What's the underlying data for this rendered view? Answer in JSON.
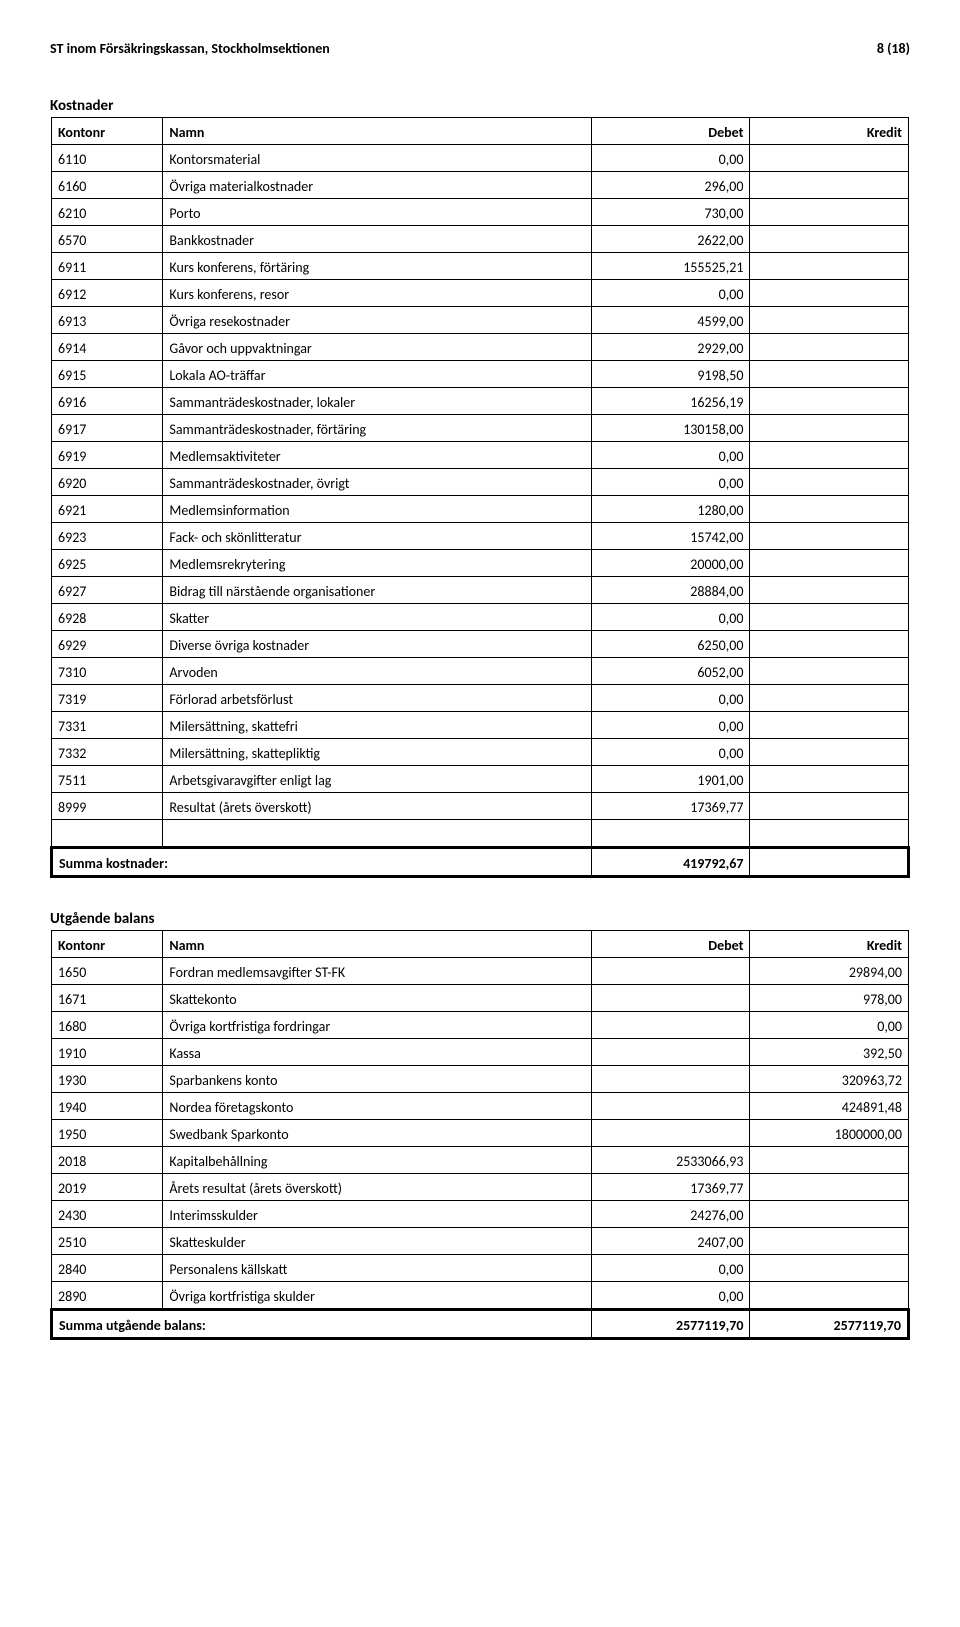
{
  "header": {
    "org": "ST inom Försäkringskassan, Stockholmsektionen",
    "page": "8 (18)"
  },
  "kostnader": {
    "title": "Kostnader",
    "columns": [
      "Kontonr",
      "Namn",
      "Debet",
      "Kredit"
    ],
    "rows": [
      [
        "6110",
        "Kontorsmaterial",
        "0,00",
        ""
      ],
      [
        "6160",
        "Övriga materialkostnader",
        "296,00",
        ""
      ],
      [
        "6210",
        "Porto",
        "730,00",
        ""
      ],
      [
        "6570",
        "Bankkostnader",
        "2622,00",
        ""
      ],
      [
        "6911",
        "Kurs konferens, förtäring",
        "155525,21",
        ""
      ],
      [
        "6912",
        "Kurs konferens, resor",
        "0,00",
        ""
      ],
      [
        "6913",
        "Övriga resekostnader",
        "4599,00",
        ""
      ],
      [
        "6914",
        "Gåvor och uppvaktningar",
        "2929,00",
        ""
      ],
      [
        "6915",
        "Lokala AO-träffar",
        "9198,50",
        ""
      ],
      [
        "6916",
        "Sammanträdeskostnader, lokaler",
        "16256,19",
        ""
      ],
      [
        "6917",
        "Sammanträdeskostnader, förtäring",
        "130158,00",
        ""
      ],
      [
        "6919",
        "Medlemsaktiviteter",
        "0,00",
        ""
      ],
      [
        "6920",
        "Sammanträdeskostnader, övrigt",
        "0,00",
        ""
      ],
      [
        "6921",
        "Medlemsinformation",
        "1280,00",
        ""
      ],
      [
        "6923",
        "Fack- och skönlitteratur",
        "15742,00",
        ""
      ],
      [
        "6925",
        "Medlemsrekrytering",
        "20000,00",
        ""
      ],
      [
        "6927",
        "Bidrag till närstående organisationer",
        "28884,00",
        ""
      ],
      [
        "6928",
        "Skatter",
        "0,00",
        ""
      ],
      [
        "6929",
        "Diverse övriga kostnader",
        "6250,00",
        ""
      ],
      [
        "7310",
        "Arvoden",
        "6052,00",
        ""
      ],
      [
        "7319",
        "Förlorad arbetsförlust",
        "0,00",
        ""
      ],
      [
        "7331",
        "Milersättning, skattefri",
        "0,00",
        ""
      ],
      [
        "7332",
        "Milersättning, skattepliktig",
        "0,00",
        ""
      ],
      [
        "7511",
        "Arbetsgivaravgifter enligt lag",
        "1901,00",
        ""
      ],
      [
        "8999",
        "Resultat (årets överskott)",
        "17369,77",
        ""
      ]
    ],
    "sum_label": "Summa kostnader:",
    "sum_debet": "419792,67"
  },
  "utgaende": {
    "title": "Utgående balans",
    "columns": [
      "Kontonr",
      "Namn",
      "Debet",
      "Kredit"
    ],
    "rows": [
      [
        "1650",
        "Fordran medlemsavgifter ST-FK",
        "",
        "29894,00"
      ],
      [
        "1671",
        "Skattekonto",
        "",
        "978,00"
      ],
      [
        "1680",
        "Övriga kortfristiga fordringar",
        "",
        "0,00"
      ],
      [
        "1910",
        "Kassa",
        "",
        "392,50"
      ],
      [
        "1930",
        "Sparbankens konto",
        "",
        "320963,72"
      ],
      [
        "1940",
        "Nordea företagskonto",
        "",
        "424891,48"
      ],
      [
        "1950",
        "Swedbank Sparkonto",
        "",
        "1800000,00"
      ],
      [
        "2018",
        "Kapitalbehållning",
        "2533066,93",
        ""
      ],
      [
        "2019",
        "Årets resultat (årets överskott)",
        "17369,77",
        ""
      ],
      [
        "2430",
        "Interimsskulder",
        "24276,00",
        ""
      ],
      [
        "2510",
        "Skatteskulder",
        "2407,00",
        ""
      ],
      [
        "2840",
        "Personalens källskatt",
        "0,00",
        ""
      ],
      [
        "2890",
        "Övriga kortfristiga skulder",
        "0,00",
        ""
      ]
    ],
    "sum_label": "Summa utgående balans:",
    "sum_debet": "2577119,70",
    "sum_kredit": "2577119,70"
  }
}
